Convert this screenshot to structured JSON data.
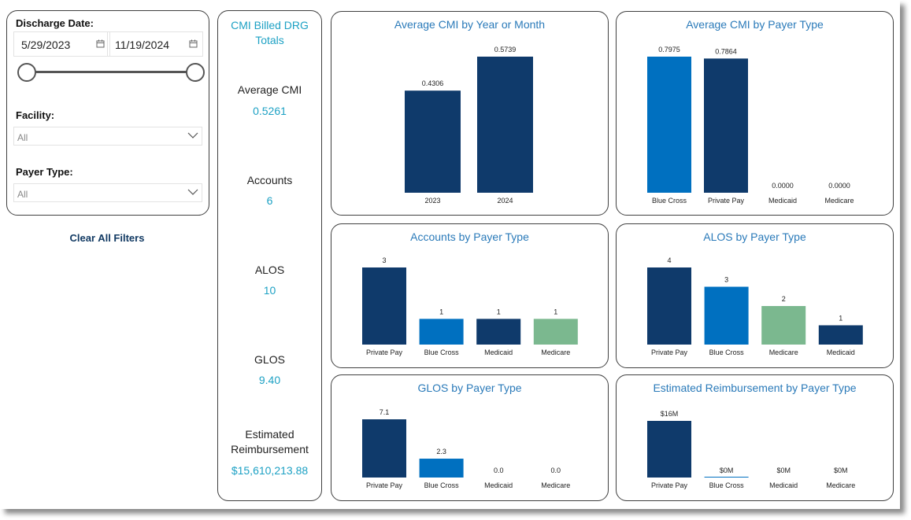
{
  "filters": {
    "discharge_label": "Discharge Date:",
    "start_date": "5/29/2023",
    "end_date": "11/19/2024",
    "facility_label": "Facility:",
    "facility_value": "All",
    "payer_label": "Payer Type:",
    "payer_value": "All",
    "clear_label": "Clear All Filters"
  },
  "kpi": {
    "title": "CMI Billed DRG Totals",
    "avg_cmi_label": "Average CMI",
    "avg_cmi_value": "0.5261",
    "accounts_label": "Accounts",
    "accounts_value": "6",
    "alos_label": "ALOS",
    "alos_value": "10",
    "glos_label": "GLOS",
    "glos_value": "9.40",
    "reimb_label": "Estimated Reimbursement",
    "reimb_value": "$15,610,213.88"
  },
  "colors": {
    "navy": "#0f3a6b",
    "blue": "#0070c0",
    "green": "#7bb88f",
    "title": "#2a7ab9",
    "accent": "#1da1c4"
  },
  "chart_data": [
    {
      "id": "cmi_year",
      "type": "bar",
      "title": "Average CMI by Year or Month",
      "categories": [
        "2023",
        "2024"
      ],
      "values": [
        0.4306,
        0.5739
      ],
      "labels": [
        "0.4306",
        "0.5739"
      ],
      "colors": [
        "navy",
        "navy"
      ],
      "ylim": [
        0,
        0.5739
      ]
    },
    {
      "id": "cmi_payer",
      "type": "bar",
      "title": "Average CMI by Payer Type",
      "categories": [
        "Blue Cross",
        "Private Pay",
        "Medicaid",
        "Medicare"
      ],
      "values": [
        0.7975,
        0.7864,
        0,
        0
      ],
      "labels": [
        "0.7975",
        "0.7864",
        "0.0000",
        "0.0000"
      ],
      "colors": [
        "blue",
        "navy",
        "navy",
        "navy"
      ],
      "ylim": [
        0,
        0.7975
      ]
    },
    {
      "id": "accounts_payer",
      "type": "bar",
      "title": "Accounts by Payer Type",
      "categories": [
        "Private Pay",
        "Blue Cross",
        "Medicaid",
        "Medicare"
      ],
      "values": [
        3,
        1,
        1,
        1
      ],
      "labels": [
        "3",
        "1",
        "1",
        "1"
      ],
      "colors": [
        "navy",
        "blue",
        "navy",
        "green"
      ],
      "ylim": [
        0,
        3
      ]
    },
    {
      "id": "alos_payer",
      "type": "bar",
      "title": "ALOS by Payer Type",
      "categories": [
        "Private Pay",
        "Blue Cross",
        "Medicare",
        "Medicaid"
      ],
      "values": [
        4,
        3,
        2,
        1
      ],
      "labels": [
        "4",
        "3",
        "2",
        "1"
      ],
      "colors": [
        "navy",
        "blue",
        "green",
        "navy"
      ],
      "ylim": [
        0,
        4
      ]
    },
    {
      "id": "glos_payer",
      "type": "bar",
      "title": "GLOS by Payer Type",
      "categories": [
        "Private Pay",
        "Blue Cross",
        "Medicaid",
        "Medicare"
      ],
      "values": [
        7.1,
        2.3,
        0,
        0
      ],
      "labels": [
        "7.1",
        "2.3",
        "0.0",
        "0.0"
      ],
      "colors": [
        "navy",
        "blue",
        "navy",
        "navy"
      ],
      "ylim": [
        0,
        7.1
      ]
    },
    {
      "id": "reimb_payer",
      "type": "bar",
      "title": "Estimated Reimbursement by Payer Type",
      "categories": [
        "Private Pay",
        "Blue Cross",
        "Medicaid",
        "Medicare"
      ],
      "values": [
        15.6,
        0.0,
        0,
        0
      ],
      "labels": [
        "$16M",
        "$0M",
        "$0M",
        "$0M"
      ],
      "colors": [
        "navy",
        "blue",
        "navy",
        "navy"
      ],
      "ylim": [
        0,
        15.6
      ]
    }
  ]
}
